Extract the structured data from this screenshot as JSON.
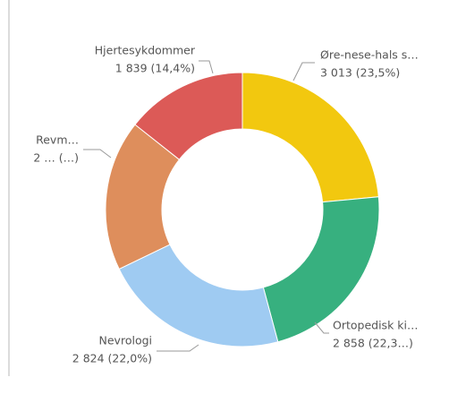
{
  "chart_data": {
    "type": "donut",
    "categories": [
      "Øre-nese-hals s…",
      "Ortopedisk ki…",
      "Nevrologi",
      "Revm…",
      "Hjertesykdommer"
    ],
    "values": [
      3013,
      2858,
      2824,
      2280,
      1839
    ],
    "value_labels": [
      "3 013 (23,5%)",
      "2 858 (22,3…)",
      "2 824 (22,0%)",
      "2 … (…)",
      "1 839 (14,4%)"
    ],
    "colors": [
      "#F2C80F",
      "#37B07F",
      "#9FCBF2",
      "#DE8E5C",
      "#DC5A57"
    ]
  }
}
